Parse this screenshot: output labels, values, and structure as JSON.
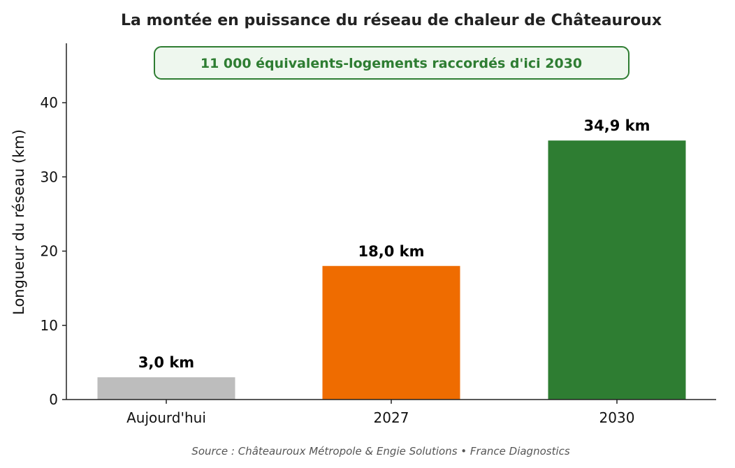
{
  "chart_data": {
    "type": "bar",
    "title": "La montée en puissance du réseau de chaleur de Châteauroux",
    "xlabel": "",
    "ylabel": "Longueur du réseau (km)",
    "categories": [
      "Aujourd'hui",
      "2027",
      "2030"
    ],
    "values": [
      3.0,
      18.0,
      34.9
    ],
    "data_labels": [
      "3,0 km",
      "18,0 km",
      "34,9 km"
    ],
    "bar_colors": [
      "#bdbdbd",
      "#ef6c00",
      "#2e7d32"
    ],
    "ylim": [
      0,
      48
    ],
    "yticks": [
      0,
      10,
      20,
      30,
      40
    ],
    "grid": false,
    "annotation": {
      "text": "11 000 équivalents-logements raccordés d'ici 2030",
      "color": "#2e7d32",
      "background": "#eef7ee"
    }
  },
  "source": "Source : Châteauroux Métropole & Engie Solutions   •   France Diagnostics"
}
